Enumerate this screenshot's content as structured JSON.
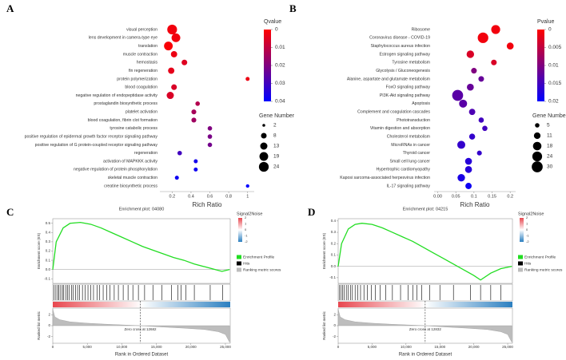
{
  "chart_data": [
    {
      "type": "bubble",
      "panel": "A",
      "categories": [
        "visual perception",
        "lens development in camera-type eye",
        "translation",
        "muscle contraction",
        "hemostasis",
        "fin regeneration",
        "protein polymerization",
        "blood coagulation",
        "negative regulation of endopeptidase activity",
        "prostaglandin biosynthetic process",
        "platelet activation",
        "blood coagulation, fibrin clot formation",
        "tyrosine catabolic process",
        "positive regulation of epidermal growth factor receptor signaling pathway",
        "positive regulation of G protein-coupled receptor signaling pathway",
        "regeneration",
        "activation of MAPKKK activity",
        "negative regulation of protein phosphorylation",
        "skeletal muscle contraction",
        "creatine biosynthetic process"
      ],
      "values": [
        0.2,
        0.24,
        0.16,
        0.22,
        0.33,
        0.19,
        1.0,
        0.22,
        0.18,
        0.47,
        0.43,
        0.43,
        0.6,
        0.6,
        0.6,
        0.28,
        0.45,
        0.45,
        0.25,
        1.0
      ],
      "color_values": [
        0.002,
        0.002,
        0.001,
        0.003,
        0.005,
        0.004,
        0.003,
        0.006,
        0.006,
        0.012,
        0.014,
        0.015,
        0.02,
        0.021,
        0.022,
        0.03,
        0.037,
        0.038,
        0.038,
        0.04
      ],
      "sizes": [
        24,
        19,
        19,
        10,
        8,
        10,
        4,
        8,
        13,
        5,
        6,
        6,
        5,
        5,
        5,
        5,
        4,
        4,
        4,
        3
      ],
      "xlabel": "Rich Ratio",
      "xlim": [
        0.07,
        1.07
      ],
      "xticks": [
        0.2,
        0.4,
        0.6,
        0.8,
        1
      ],
      "color_title": "Qvalue",
      "color_lim": [
        0,
        0.04
      ],
      "color_ticks": [
        0,
        0.01,
        0.02,
        0.03,
        0.04
      ],
      "colors": [
        "#ff0000",
        "#0000ff"
      ],
      "size_title": "Gene Number",
      "size_ticks": [
        2,
        8,
        13,
        19,
        24
      ]
    },
    {
      "type": "bubble",
      "panel": "B",
      "categories": [
        "Ribosome",
        "Coronavirus disease - COVID-19",
        "Staphylococcus aureus infection",
        "Estrogen signaling pathway",
        "Tyrosine metabolism",
        "Glycolysis / Gluconeogenesis",
        "Alanine, aspartate and glutamate metabolism",
        "FoxO signaling pathway",
        "PI3K-Akt signaling pathway",
        "Apoptosis",
        "Complement and coagulation cascades",
        "Phototransduction",
        "Vitamin digestion and absorption",
        "Cholesterol metabolism",
        "MicroRNAs in cancer",
        "Thyroid cancer",
        "Small cell lung cancer",
        "Hypertrophic cardiomyopathy",
        "Kaposi sarcoma-associated herpesvirus infection",
        "IL-17 signaling pathway"
      ],
      "values": [
        0.16,
        0.125,
        0.2,
        0.09,
        0.155,
        0.1,
        0.12,
        0.09,
        0.055,
        0.07,
        0.095,
        0.12,
        0.13,
        0.095,
        0.065,
        0.115,
        0.085,
        0.085,
        0.065,
        0.085
      ],
      "color_values": [
        0.001,
        0.001,
        0.001,
        0.003,
        0.003,
        0.01,
        0.012,
        0.012,
        0.013,
        0.013,
        0.014,
        0.015,
        0.015,
        0.016,
        0.016,
        0.016,
        0.017,
        0.017,
        0.018,
        0.019
      ],
      "sizes": [
        20,
        28,
        12,
        14,
        8,
        8,
        8,
        12,
        30,
        16,
        10,
        7,
        7,
        9,
        16,
        6,
        12,
        12,
        14,
        10
      ],
      "xlabel": "Rich Ratio",
      "xlim": [
        -0.01,
        0.215
      ],
      "xticks": [
        {
          "value": 0,
          "label": "0.00"
        },
        0.05,
        0.1,
        0.15,
        0.2
      ],
      "color_title": "Pvalue",
      "color_lim": [
        0,
        0.02
      ],
      "color_ticks": [
        0,
        0.005,
        0.01,
        0.015,
        0.02
      ],
      "colors": [
        "#ff0000",
        "#0000ff"
      ],
      "size_title": "Gene Number",
      "size_ticks": [
        5,
        11,
        18,
        24,
        30
      ]
    },
    {
      "type": "line",
      "panel": "C",
      "title": "Enrichment plot: 04080",
      "x": [
        0,
        500,
        1500,
        2500,
        4000,
        5500,
        7000,
        8500,
        10000,
        11500,
        13000,
        14500,
        16000,
        17500,
        19000,
        20500,
        22000,
        23500,
        24500,
        25600
      ],
      "series": [
        {
          "name": "Enrichment Profile",
          "color": "#22dd22",
          "values": [
            0,
            0.3,
            0.45,
            0.5,
            0.51,
            0.49,
            0.45,
            0.4,
            0.35,
            0.3,
            0.25,
            0.21,
            0.17,
            0.13,
            0.1,
            0.06,
            0.03,
            0,
            -0.02,
            0
          ]
        }
      ],
      "hits": {
        "name": "Hits",
        "x": [
          200,
          450,
          700,
          900,
          1150,
          1400,
          1600,
          1900,
          2150,
          2400,
          2700,
          2950,
          3300,
          3600,
          3900,
          4300,
          4700,
          5100,
          5500,
          5900,
          6400,
          6800,
          7300,
          7800,
          8300,
          8900,
          9500,
          10200,
          10900,
          11600,
          12400,
          13300,
          14500,
          15800,
          17200,
          18100,
          18600,
          19300,
          20500,
          22800,
          24600
        ]
      },
      "metric": {
        "name": "Ranking metric scores",
        "x": [
          0,
          300,
          1000,
          2500,
          5000,
          8000,
          12682,
          16000,
          19000,
          22000,
          24000,
          25000,
          25600
        ],
        "values": [
          3,
          1.6,
          1.1,
          0.7,
          0.45,
          0.25,
          0,
          -0.25,
          -0.45,
          -0.7,
          -1.1,
          -1.6,
          -3
        ],
        "ylim": [
          -3.2,
          3.2
        ],
        "yticks": [
          2,
          0,
          -2
        ]
      },
      "ylabel": "Enrichment score (ES)",
      "metric_ylabel": "Ranked list metric",
      "xlabel": "Rank in Ordered Dataset",
      "xlim": [
        0,
        25700
      ],
      "xticks": [
        0,
        {
          "value": 5000,
          "label": "5,000"
        },
        {
          "value": 10000,
          "label": "10,000"
        },
        {
          "value": 15000,
          "label": "15,000"
        },
        {
          "value": 20000,
          "label": "20,000"
        },
        {
          "value": 25000,
          "label": "25,000"
        }
      ],
      "ylim": [
        -0.15,
        0.55
      ],
      "yticks": [
        0.5,
        0.4,
        0.3,
        0.2,
        0.1,
        {
          "value": 0,
          "label": "0.0"
        },
        -0.1
      ],
      "zero_cross": {
        "value": 12682,
        "label": "Zero cross at 12682"
      },
      "color_title": "Signal2Noise",
      "color_ticks": [
        2,
        1,
        0,
        -1,
        -2
      ]
    },
    {
      "type": "line",
      "panel": "D",
      "title": "Enrichment plot: 04215",
      "x": [
        0,
        500,
        1500,
        2500,
        3500,
        5000,
        6500,
        8000,
        9500,
        11000,
        12500,
        14000,
        15500,
        17000,
        18500,
        20000,
        21000,
        22500,
        24000,
        25600
      ],
      "series": [
        {
          "name": "Enrichment Profile",
          "color": "#22dd22",
          "values": [
            0,
            0.2,
            0.33,
            0.37,
            0.38,
            0.37,
            0.34,
            0.3,
            0.26,
            0.22,
            0.17,
            0.12,
            0.07,
            0.02,
            -0.03,
            -0.08,
            -0.12,
            -0.06,
            -0.02,
            0
          ]
        }
      ],
      "hits": {
        "name": "Hits",
        "x": [
          150,
          400,
          650,
          900,
          1200,
          1500,
          1800,
          2100,
          2500,
          2900,
          3300,
          3800,
          4300,
          4900,
          5500,
          6200,
          7000,
          8000,
          9200,
          10300,
          11000,
          11600,
          12300,
          13500,
          15000,
          17000,
          19500,
          21000,
          22500,
          24000
        ]
      },
      "metric": {
        "name": "Ranking metric scores",
        "x": [
          0,
          300,
          1000,
          2500,
          5000,
          8000,
          12832,
          16000,
          19000,
          22000,
          24000,
          25000,
          25600
        ],
        "values": [
          3,
          1.6,
          1.1,
          0.7,
          0.45,
          0.25,
          0,
          -0.25,
          -0.45,
          -0.7,
          -1.1,
          -1.6,
          -3
        ],
        "ylim": [
          -3.2,
          3.2
        ],
        "yticks": [
          2,
          0,
          -2
        ]
      },
      "ylabel": "Enrichment score (ES)",
      "metric_ylabel": "Ranked list metric",
      "xlabel": "Rank in Ordered Dataset",
      "xlim": [
        0,
        25700
      ],
      "xticks": [
        0,
        {
          "value": 5000,
          "label": "5,000"
        },
        {
          "value": 10000,
          "label": "10,000"
        },
        {
          "value": 15000,
          "label": "15,000"
        },
        {
          "value": 20000,
          "label": "20,000"
        },
        {
          "value": 25000,
          "label": "25,000"
        }
      ],
      "ylim": [
        -0.15,
        0.42
      ],
      "yticks": [
        0.4,
        0.3,
        0.2,
        0.1,
        {
          "value": 0,
          "label": "0.0"
        },
        -0.1
      ],
      "zero_cross": {
        "value": 12832,
        "label": "Zero cross at 12832"
      },
      "color_title": "Signal2Noise",
      "color_ticks": [
        2,
        1,
        0,
        -1,
        -2
      ]
    }
  ]
}
